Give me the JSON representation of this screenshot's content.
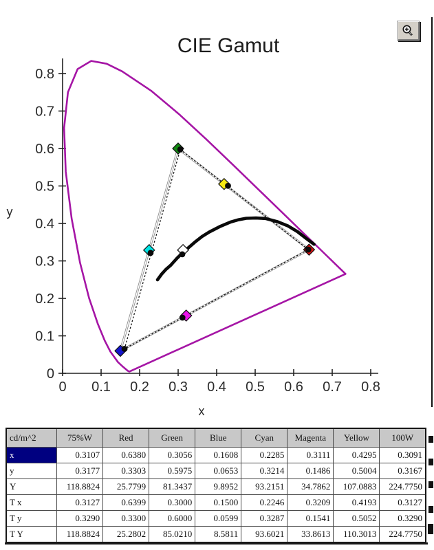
{
  "toolbar": {
    "zoom_button": {
      "icon": "zoom-in-magnifier-plus-icon"
    }
  },
  "chart_data": {
    "type": "scatter",
    "title": "CIE Gamut",
    "xlabel": "x",
    "ylabel": "y",
    "xlim": [
      0,
      0.8
    ],
    "ylim": [
      0,
      0.8
    ],
    "grid": false,
    "xtick_labels": [
      "0",
      "0.1",
      "0.2",
      "0.3",
      "0.4",
      "0.5",
      "0.6",
      "0.7",
      "0.8"
    ],
    "ytick_labels": [
      "0",
      "0.1",
      "0.2",
      "0.3",
      "0.4",
      "0.5",
      "0.6",
      "0.7",
      "0.8"
    ],
    "spectral_locus_color": "#a515a5",
    "spectral_locus": [
      [
        0.1741,
        0.005
      ],
      [
        0.1726,
        0.0048
      ],
      [
        0.169,
        0.0069
      ],
      [
        0.1644,
        0.0109
      ],
      [
        0.1566,
        0.0177
      ],
      [
        0.144,
        0.0297
      ],
      [
        0.1241,
        0.0578
      ],
      [
        0.1096,
        0.0868
      ],
      [
        0.0913,
        0.1327
      ],
      [
        0.0687,
        0.2007
      ],
      [
        0.0454,
        0.295
      ],
      [
        0.0235,
        0.4127
      ],
      [
        0.0082,
        0.5384
      ],
      [
        0.0039,
        0.6548
      ],
      [
        0.0139,
        0.7502
      ],
      [
        0.0389,
        0.812
      ],
      [
        0.0743,
        0.8338
      ],
      [
        0.1142,
        0.8262
      ],
      [
        0.1547,
        0.8059
      ],
      [
        0.2296,
        0.7543
      ],
      [
        0.3016,
        0.6923
      ],
      [
        0.3731,
        0.6245
      ],
      [
        0.4441,
        0.5547
      ],
      [
        0.5125,
        0.4866
      ],
      [
        0.5752,
        0.4242
      ],
      [
        0.627,
        0.3725
      ],
      [
        0.6658,
        0.334
      ],
      [
        0.6915,
        0.3083
      ],
      [
        0.7079,
        0.292
      ],
      [
        0.719,
        0.2809
      ],
      [
        0.7347,
        0.2653
      ]
    ],
    "planckian_locus_color": "#0a0a0a",
    "planckian_locus": [
      [
        0.2464,
        0.2495
      ],
      [
        0.2566,
        0.264
      ],
      [
        0.268,
        0.277
      ],
      [
        0.2806,
        0.2883
      ],
      [
        0.297,
        0.307
      ],
      [
        0.3135,
        0.3237
      ],
      [
        0.33,
        0.338
      ],
      [
        0.3451,
        0.3516
      ],
      [
        0.362,
        0.365
      ],
      [
        0.3805,
        0.3768
      ],
      [
        0.41,
        0.3925
      ],
      [
        0.4369,
        0.4041
      ],
      [
        0.457,
        0.41
      ],
      [
        0.477,
        0.4137
      ],
      [
        0.502,
        0.4145
      ],
      [
        0.5267,
        0.4133
      ],
      [
        0.557,
        0.405
      ],
      [
        0.5857,
        0.3931
      ],
      [
        0.61,
        0.378
      ],
      [
        0.635,
        0.358
      ],
      [
        0.6528,
        0.3444
      ]
    ],
    "target_triangle_color": "#8f8f8f",
    "measured_triangle_color": "#111111",
    "target_triangle": [
      [
        0.6399,
        0.33
      ],
      [
        0.3,
        0.6
      ],
      [
        0.15,
        0.0599
      ]
    ],
    "measured_triangle": [
      [
        0.638,
        0.3303
      ],
      [
        0.3056,
        0.5975
      ],
      [
        0.1608,
        0.0653
      ]
    ],
    "markers": [
      {
        "name": "white-75pctW",
        "color": "#ffffff",
        "target": [
          0.3127,
          0.329
        ],
        "measured": [
          0.3107,
          0.3177
        ]
      },
      {
        "name": "red",
        "color": "#dd1111",
        "target": [
          0.6399,
          0.33
        ],
        "measured": [
          0.638,
          0.3303
        ]
      },
      {
        "name": "green",
        "color": "#128a12",
        "target": [
          0.3,
          0.6
        ],
        "measured": [
          0.3056,
          0.5975
        ]
      },
      {
        "name": "blue",
        "color": "#1414cc",
        "target": [
          0.15,
          0.0599
        ],
        "measured": [
          0.1608,
          0.0653
        ]
      },
      {
        "name": "cyan",
        "color": "#00e5e5",
        "target": [
          0.2246,
          0.3287
        ],
        "measured": [
          0.2285,
          0.3214
        ]
      },
      {
        "name": "magenta",
        "color": "#e813e8",
        "target": [
          0.3209,
          0.1541
        ],
        "measured": [
          0.3111,
          0.1486
        ]
      },
      {
        "name": "yellow",
        "color": "#f5e913",
        "target": [
          0.4193,
          0.5052
        ],
        "measured": [
          0.4295,
          0.5004
        ]
      }
    ]
  },
  "table": {
    "corner_label": "cd/m^2",
    "columns": [
      "75%W",
      "Red",
      "Green",
      "Blue",
      "Cyan",
      "Magenta",
      "Yellow",
      "100W"
    ],
    "rows": [
      {
        "label": "x",
        "selected": true,
        "values": [
          "0.3107",
          "0.6380",
          "0.3056",
          "0.1608",
          "0.2285",
          "0.3111",
          "0.4295",
          "0.3091"
        ]
      },
      {
        "label": "y",
        "selected": false,
        "values": [
          "0.3177",
          "0.3303",
          "0.5975",
          "0.0653",
          "0.3214",
          "0.1486",
          "0.5004",
          "0.3167"
        ]
      },
      {
        "label": "Y",
        "selected": false,
        "values": [
          "118.8824",
          "25.7799",
          "81.3437",
          "9.8952",
          "93.2151",
          "34.7862",
          "107.0883",
          "224.7750"
        ]
      },
      {
        "label": "T x",
        "selected": false,
        "values": [
          "0.3127",
          "0.6399",
          "0.3000",
          "0.1500",
          "0.2246",
          "0.3209",
          "0.4193",
          "0.3127"
        ]
      },
      {
        "label": "T y",
        "selected": false,
        "values": [
          "0.3290",
          "0.3300",
          "0.6000",
          "0.0599",
          "0.3287",
          "0.1541",
          "0.5052",
          "0.3290"
        ]
      },
      {
        "label": "T Y",
        "selected": false,
        "values": [
          "118.8824",
          "25.2802",
          "85.0210",
          "8.5811",
          "93.6021",
          "33.8613",
          "110.3013",
          "224.7750"
        ]
      }
    ]
  }
}
